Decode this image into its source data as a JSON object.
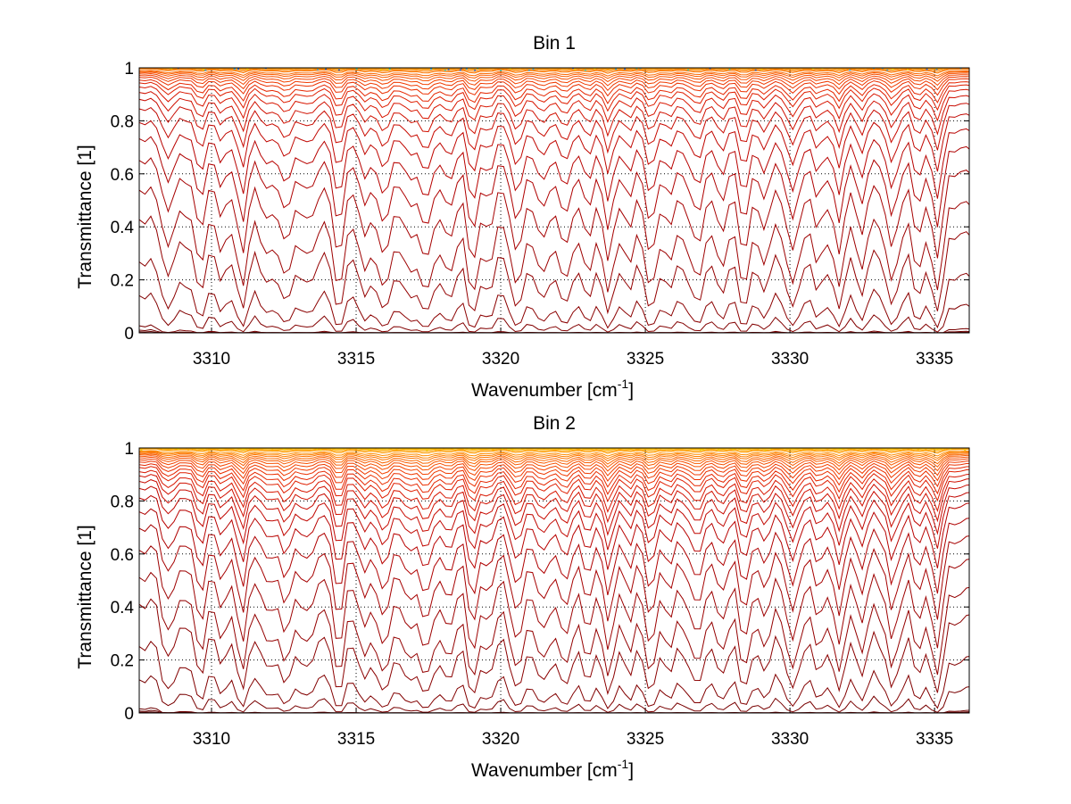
{
  "chart_data": [
    {
      "type": "line",
      "title": "Bin 1",
      "xlabel": "Wavenumber [cm",
      "xlabel_sup": "-1",
      "xlabel_end": "]",
      "ylabel": "Transmittance [1]",
      "xlim": [
        3307.5,
        3336.2
      ],
      "ylim": [
        0,
        1
      ],
      "xticks": [
        "3310",
        "3315",
        "3320",
        "3325",
        "3330",
        "3335"
      ],
      "yticks": [
        "0",
        "0.2",
        "0.4",
        "0.6",
        "0.8",
        "1"
      ],
      "grid": true,
      "legend": "none",
      "lines": {
        "count": 30,
        "x_sample_spacing": 0.2,
        "absorption_line_centers": [
          3308.6,
          3309.6,
          3310.3,
          3311.1,
          3312.0,
          3312.6,
          3313.4,
          3314.4,
          3315.3,
          3316.0,
          3316.8,
          3317.4,
          3318.2,
          3319.0,
          3319.6,
          3320.6,
          3321.4,
          3322.2,
          3323.0,
          3323.7,
          3324.5,
          3325.2,
          3325.9,
          3326.8,
          3327.6,
          3328.4,
          3329.2,
          3330.1,
          3330.9,
          3331.7,
          3332.5,
          3333.5,
          3334.4,
          3335.1
        ],
        "absorption_line_strengths": [
          0.5,
          0.6,
          0.45,
          1.0,
          0.45,
          1.0,
          0.55,
          1.0,
          0.7,
          1.2,
          0.6,
          1.3,
          0.7,
          1.1,
          0.6,
          1.0,
          0.8,
          1.0,
          0.6,
          1.1,
          0.55,
          1.0,
          0.6,
          1.0,
          0.55,
          1.05,
          0.55,
          1.0,
          0.6,
          1.0,
          0.55,
          1.0,
          0.7,
          1.05
        ],
        "baseline_transmittance": [
          0.0,
          0.005,
          0.012,
          0.03,
          0.15,
          0.28,
          0.44,
          0.55,
          0.66,
          0.74,
          0.8,
          0.85,
          0.885,
          0.91,
          0.93,
          0.945,
          0.955,
          0.965,
          0.972,
          0.978,
          0.983,
          0.987,
          0.99,
          0.992,
          0.994,
          0.996,
          0.997,
          0.998,
          0.999,
          1.0
        ],
        "colors": [
          "#5a0000",
          "#640000",
          "#6e0000",
          "#780000",
          "#820000",
          "#8b0000",
          "#940000",
          "#9d0000",
          "#a60000",
          "#af0000",
          "#b80200",
          "#c00600",
          "#c80a00",
          "#d01000",
          "#d81600",
          "#df1e00",
          "#e52600",
          "#eb3000",
          "#ef3a00",
          "#f34400",
          "#f65000",
          "#f85c00",
          "#fa6800",
          "#fb7400",
          "#fc8000",
          "#fd8c00",
          "#fd9800",
          "#fea400",
          "#feb000",
          "#febc00"
        ],
        "top_speckle_colors": [
          "#1f5fcf",
          "#2aa0d8",
          "#39c7a0",
          "#e8d000"
        ]
      }
    },
    {
      "type": "line",
      "title": "Bin 2",
      "xlabel": "Wavenumber [cm",
      "xlabel_sup": "-1",
      "xlabel_end": "]",
      "ylabel": "Transmittance [1]",
      "xlim": [
        3307.5,
        3336.2
      ],
      "ylim": [
        0,
        1
      ],
      "xticks": [
        "3310",
        "3315",
        "3320",
        "3325",
        "3330",
        "3335"
      ],
      "yticks": [
        "0",
        "0.2",
        "0.4",
        "0.6",
        "0.8",
        "1"
      ],
      "grid": true,
      "legend": "none",
      "lines": {
        "count": 34,
        "x_sample_spacing": 0.2,
        "absorption_line_centers": [
          3308.6,
          3309.6,
          3310.3,
          3311.1,
          3312.0,
          3312.6,
          3313.4,
          3314.4,
          3315.3,
          3316.0,
          3316.8,
          3317.4,
          3318.2,
          3319.0,
          3319.6,
          3320.6,
          3321.4,
          3322.2,
          3323.0,
          3323.7,
          3324.5,
          3325.2,
          3325.9,
          3326.8,
          3327.6,
          3328.4,
          3329.2,
          3330.1,
          3330.9,
          3331.7,
          3332.5,
          3333.5,
          3334.4,
          3335.1
        ],
        "absorption_line_strengths": [
          0.5,
          0.6,
          0.45,
          1.0,
          0.45,
          1.0,
          0.55,
          1.0,
          0.7,
          1.2,
          0.6,
          1.3,
          0.7,
          1.1,
          0.6,
          1.0,
          0.8,
          1.0,
          0.6,
          1.1,
          0.55,
          1.0,
          0.6,
          1.0,
          0.55,
          1.05,
          0.55,
          1.0,
          0.6,
          1.0,
          0.55,
          1.0,
          0.7,
          1.05
        ],
        "baseline_transmittance": [
          0.0,
          0.004,
          0.01,
          0.02,
          0.14,
          0.27,
          0.43,
          0.53,
          0.63,
          0.71,
          0.77,
          0.82,
          0.855,
          0.88,
          0.9,
          0.915,
          0.93,
          0.94,
          0.95,
          0.958,
          0.965,
          0.971,
          0.976,
          0.98,
          0.984,
          0.987,
          0.99,
          0.992,
          0.994,
          0.996,
          0.997,
          0.998,
          0.999,
          1.0
        ],
        "colors": [
          "#500000",
          "#5a0000",
          "#640000",
          "#6e0000",
          "#780000",
          "#820000",
          "#8b0000",
          "#940000",
          "#9d0000",
          "#a60000",
          "#af0000",
          "#b80200",
          "#c00600",
          "#c80a00",
          "#d01000",
          "#d81600",
          "#df1e00",
          "#e52600",
          "#eb3000",
          "#ef3a00",
          "#f34400",
          "#f65000",
          "#f85c00",
          "#fa6800",
          "#fb7400",
          "#fc8000",
          "#fd8c00",
          "#fd9800",
          "#fea400",
          "#feb000",
          "#febc00",
          "#fec600",
          "#fed000",
          "#fed800"
        ],
        "top_speckle_colors": [
          "#e8d000",
          "#fcae00"
        ]
      }
    }
  ]
}
